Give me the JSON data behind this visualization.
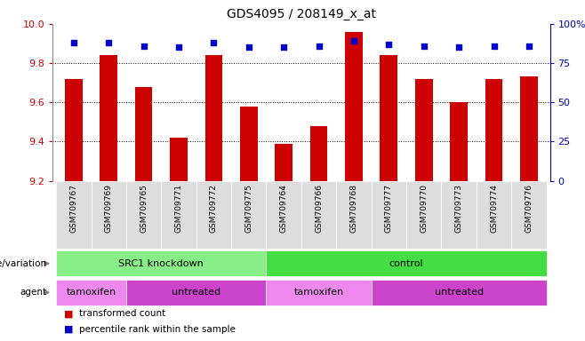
{
  "title": "GDS4095 / 208149_x_at",
  "samples": [
    "GSM709767",
    "GSM709769",
    "GSM709765",
    "GSM709771",
    "GSM709772",
    "GSM709775",
    "GSM709764",
    "GSM709766",
    "GSM709768",
    "GSM709777",
    "GSM709770",
    "GSM709773",
    "GSM709774",
    "GSM709776"
  ],
  "bar_values": [
    9.72,
    9.84,
    9.68,
    9.42,
    9.84,
    9.58,
    9.39,
    9.48,
    9.96,
    9.84,
    9.72,
    9.6,
    9.72,
    9.73
  ],
  "percentile_values": [
    88,
    88,
    86,
    85,
    88,
    85,
    85,
    86,
    89,
    87,
    86,
    85,
    86,
    86
  ],
  "bar_color": "#cc0000",
  "percentile_color": "#0000cc",
  "ylim_left": [
    9.2,
    10.0
  ],
  "ylim_right": [
    0,
    100
  ],
  "yticks_left": [
    9.2,
    9.4,
    9.6,
    9.8,
    10.0
  ],
  "yticks_right": [
    0,
    25,
    50,
    75,
    100
  ],
  "ytick_labels_right": [
    "0",
    "25",
    "50",
    "75",
    "100%"
  ],
  "grid_values": [
    9.4,
    9.6,
    9.8
  ],
  "genotype_groups": [
    {
      "label": "SRC1 knockdown",
      "start": 0,
      "end": 6,
      "color": "#88ee88"
    },
    {
      "label": "control",
      "start": 6,
      "end": 14,
      "color": "#44dd44"
    }
  ],
  "agent_groups": [
    {
      "label": "tamoxifen",
      "start": 0,
      "end": 2,
      "color": "#ee88ee"
    },
    {
      "label": "untreated",
      "start": 2,
      "end": 6,
      "color": "#cc44cc"
    },
    {
      "label": "tamoxifen",
      "start": 6,
      "end": 9,
      "color": "#ee88ee"
    },
    {
      "label": "untreated",
      "start": 9,
      "end": 14,
      "color": "#cc44cc"
    }
  ],
  "legend_bar_label": "transformed count",
  "legend_pct_label": "percentile rank within the sample",
  "bar_color_legend": "#cc0000",
  "pct_color_legend": "#0000cc",
  "axis_color": "#cc0000",
  "right_axis_color": "#0000cc",
  "label_fontsize": 7.5,
  "tick_fontsize": 8,
  "sample_fontsize": 6.5,
  "title_fontsize": 10,
  "xticklabel_ha": "right",
  "bar_width": 0.5
}
